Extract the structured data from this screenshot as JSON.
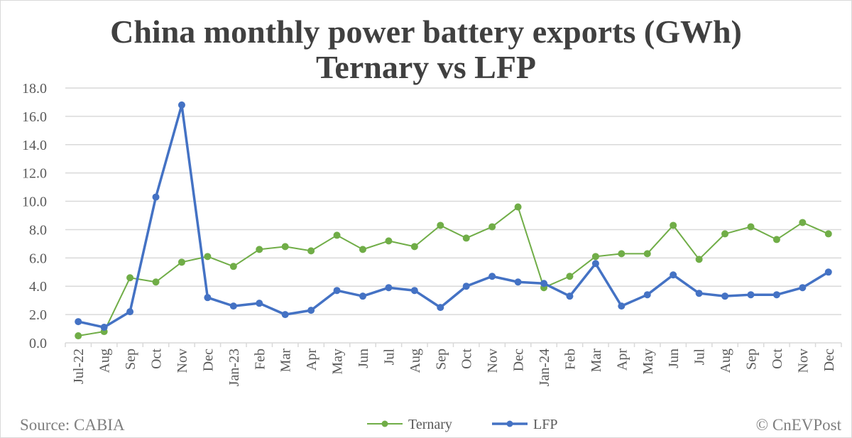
{
  "chart_data": {
    "type": "line",
    "title": "China monthly power battery exports (GWh)",
    "subtitle": "Ternary vs LFP",
    "categories": [
      "Jul-22",
      "Aug",
      "Sep",
      "Oct",
      "Nov",
      "Dec",
      "Jan-23",
      "Feb",
      "Mar",
      "Apr",
      "May",
      "Jun",
      "Jul",
      "Aug",
      "Sep",
      "Oct",
      "Nov",
      "Dec",
      "Jan-24",
      "Feb",
      "Mar",
      "Apr",
      "May",
      "Jun",
      "Jul",
      "Aug",
      "Sep",
      "Oct",
      "Nov",
      "Dec"
    ],
    "series": [
      {
        "name": "Ternary",
        "color": "#70AD47",
        "values": [
          0.5,
          0.8,
          4.6,
          4.3,
          5.7,
          6.1,
          5.4,
          6.6,
          6.8,
          6.5,
          7.6,
          6.6,
          7.2,
          6.8,
          8.3,
          7.4,
          8.2,
          9.6,
          3.9,
          4.7,
          6.1,
          6.3,
          6.3,
          8.3,
          5.9,
          7.7,
          8.2,
          7.3,
          8.5,
          7.7
        ]
      },
      {
        "name": "LFP",
        "color": "#4472C4",
        "values": [
          1.5,
          1.1,
          2.2,
          10.3,
          16.8,
          3.2,
          2.6,
          2.8,
          2.0,
          2.3,
          3.7,
          3.3,
          3.9,
          3.7,
          2.5,
          4.0,
          4.7,
          4.3,
          4.2,
          3.3,
          5.6,
          2.6,
          3.4,
          4.8,
          3.5,
          3.3,
          3.4,
          3.4,
          3.9,
          5.0
        ]
      }
    ],
    "ylim": [
      0,
      18
    ],
    "yticks": [
      "0.0",
      "2.0",
      "4.0",
      "6.0",
      "8.0",
      "10.0",
      "12.0",
      "14.0",
      "16.0",
      "18.0"
    ],
    "grid": true,
    "legend": "bottom-center"
  },
  "footer": {
    "source": "Source: CABIA",
    "credit": "© CnEVPost"
  }
}
